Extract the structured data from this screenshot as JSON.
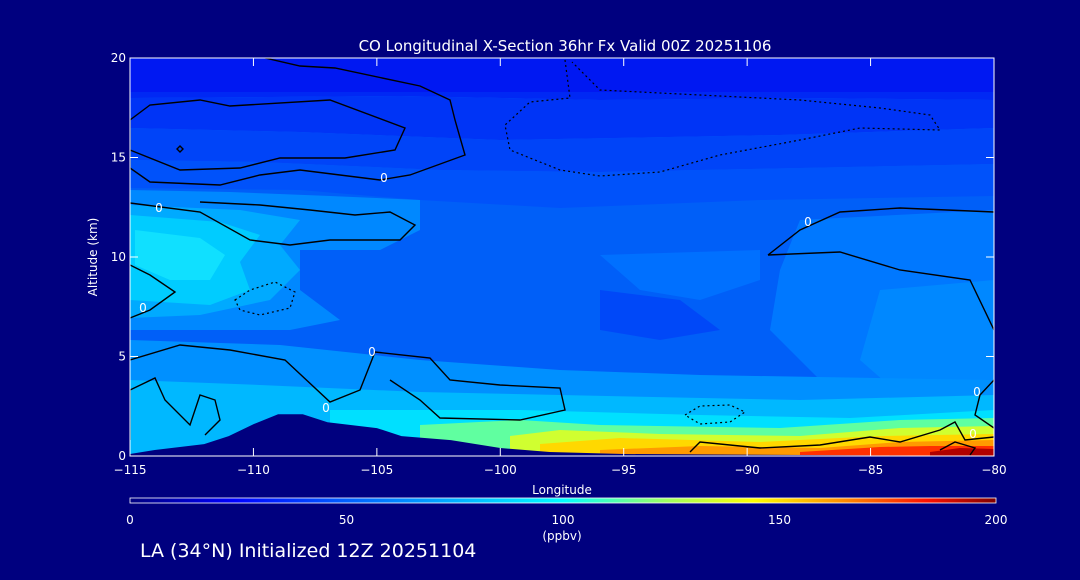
{
  "chart_data": {
    "type": "contour",
    "title": "CO Longitudinal X-Section 36hr  Fx Valid 00Z 20251106",
    "xlabel": "Longitude",
    "ylabel": "Altitude (km)",
    "x_range": [
      -115,
      -80
    ],
    "y_range": [
      0,
      20
    ],
    "x_ticks": [
      -115,
      -110,
      -105,
      -100,
      -95,
      -90,
      -85,
      -80
    ],
    "x_tick_labels": [
      "−115",
      "−110",
      "−105",
      "−100",
      "−95",
      "−90",
      "−85",
      "−80"
    ],
    "y_ticks": [
      0,
      5,
      10,
      15,
      20
    ],
    "y_tick_labels": [
      "0",
      "5",
      "10",
      "15",
      "20"
    ],
    "contour_label": "0",
    "colorbar": {
      "min": 0,
      "max": 200,
      "ticks": [
        0,
        50,
        100,
        150,
        200
      ],
      "tick_labels": [
        "0",
        "50",
        "100",
        "150",
        "200"
      ],
      "units": "(ppbv)",
      "colors": [
        "#00007f",
        "#0000ff",
        "#007fff",
        "#00ffff",
        "#7fff7f",
        "#ffff00",
        "#ff7f00",
        "#ff0000",
        "#7f0000"
      ]
    },
    "terrain_km": [
      {
        "lon": -115,
        "alt": 0.1
      },
      {
        "lon": -114,
        "alt": 0.3
      },
      {
        "lon": -112,
        "alt": 0.6
      },
      {
        "lon": -111,
        "alt": 1.0
      },
      {
        "lon": -110,
        "alt": 1.6
      },
      {
        "lon": -109,
        "alt": 2.1
      },
      {
        "lon": -108,
        "alt": 2.1
      },
      {
        "lon": -107,
        "alt": 1.7
      },
      {
        "lon": -105,
        "alt": 1.4
      },
      {
        "lon": -104,
        "alt": 1.0
      },
      {
        "lon": -102,
        "alt": 0.8
      },
      {
        "lon": -100,
        "alt": 0.4
      },
      {
        "lon": -98,
        "alt": 0.2
      },
      {
        "lon": -95,
        "alt": 0.1
      },
      {
        "lon": -80,
        "alt": 0.0
      }
    ]
  },
  "footer": {
    "text": "LA (34°N) Initialized 12Z 20251104"
  },
  "colors": {
    "background": "#00007f",
    "frame": "#ffffff",
    "contour": "#000000",
    "terrain": "#00007f"
  }
}
